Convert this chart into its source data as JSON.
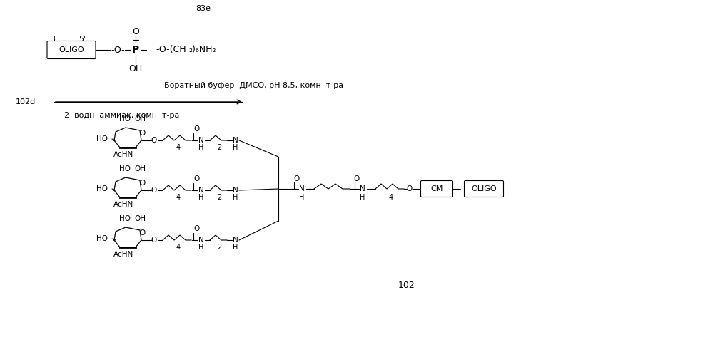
{
  "bg_color": "#ffffff",
  "fig_width": 9.99,
  "fig_height": 4.87,
  "dpi": 100,
  "label_83e": "83е",
  "label_3prime": "3'",
  "label_5prime": "5'",
  "oligo_top_text": "OLIGO",
  "reaction_text1": "Боратный буфер  ДМСО, pH 8,5, комн  т-ра",
  "label_102d": "102d",
  "reaction_text2": "2  водн  аммиак, комн  т-ра",
  "label_102": "102",
  "cm_text": "CM",
  "oligo_bot_text": "OLIGO"
}
